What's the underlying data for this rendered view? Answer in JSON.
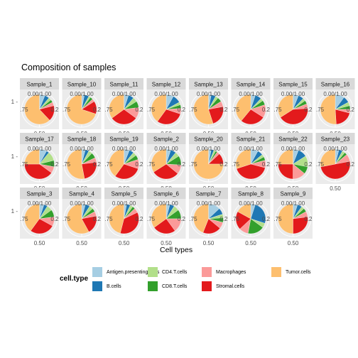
{
  "chart_data": {
    "type": "pie",
    "title": "Composition of samples",
    "xlabel": "Cell types",
    "legend_title": "cell.type",
    "legend_position": "bottom",
    "y_axis_tick": "1",
    "angle_ticks": [
      "0.00/1.00",
      ".75",
      "0.50",
      "0.2"
    ],
    "categories": [
      "Antigen.presenting.cells",
      "B.cells",
      "CD4.T.cells",
      "CD8.T.cells",
      "Macrophages",
      "Stromal.cells",
      "Tumor.cells"
    ],
    "colors": [
      "#a6cee3",
      "#1f78b4",
      "#b2df8a",
      "#33a02c",
      "#fb9a99",
      "#e31a1c",
      "#fdbf6f"
    ],
    "facets": [
      {
        "name": "Sample_1",
        "values": [
          0.06,
          0.05,
          0.03,
          0.03,
          0.04,
          0.17,
          0.62
        ]
      },
      {
        "name": "Sample_10",
        "values": [
          0.03,
          0.05,
          0.02,
          0.03,
          0.03,
          0.14,
          0.7
        ]
      },
      {
        "name": "Sample_11",
        "values": [
          0.05,
          0.06,
          0.05,
          0.07,
          0.12,
          0.3,
          0.35
        ]
      },
      {
        "name": "Sample_12",
        "values": [
          0.08,
          0.09,
          0.03,
          0.04,
          0.06,
          0.3,
          0.4
        ]
      },
      {
        "name": "Sample_13",
        "values": [
          0.03,
          0.05,
          0.03,
          0.05,
          0.06,
          0.23,
          0.55
        ]
      },
      {
        "name": "Sample_14",
        "values": [
          0.05,
          0.07,
          0.03,
          0.05,
          0.14,
          0.27,
          0.39
        ]
      },
      {
        "name": "Sample_15",
        "values": [
          0.06,
          0.06,
          0.03,
          0.04,
          0.05,
          0.42,
          0.34
        ]
      },
      {
        "name": "Sample_16",
        "values": [
          0.1,
          0.07,
          0.04,
          0.04,
          0.04,
          0.2,
          0.51
        ]
      },
      {
        "name": "Sample_17",
        "values": [
          0.08,
          0.03,
          0.1,
          0.07,
          0.07,
          0.4,
          0.25
        ]
      },
      {
        "name": "Sample_18",
        "values": [
          0.04,
          0.04,
          0.04,
          0.06,
          0.05,
          0.24,
          0.53
        ]
      },
      {
        "name": "Sample_19",
        "values": [
          0.06,
          0.05,
          0.04,
          0.05,
          0.1,
          0.3,
          0.4
        ]
      },
      {
        "name": "Sample_2",
        "values": [
          0.05,
          0.06,
          0.05,
          0.1,
          0.1,
          0.3,
          0.34
        ]
      },
      {
        "name": "Sample_20",
        "values": [
          0.03,
          0.03,
          0.02,
          0.02,
          0.03,
          0.12,
          0.75
        ]
      },
      {
        "name": "Sample_21",
        "values": [
          0.08,
          0.06,
          0.03,
          0.04,
          0.08,
          0.41,
          0.3
        ]
      },
      {
        "name": "Sample_22",
        "values": [
          0.06,
          0.1,
          0.12,
          0.08,
          0.14,
          0.25,
          0.25
        ]
      },
      {
        "name": "Sample_23",
        "values": [
          0.04,
          0.04,
          0.03,
          0.03,
          0.08,
          0.5,
          0.28
        ]
      },
      {
        "name": "Sample_3",
        "values": [
          0.05,
          0.04,
          0.06,
          0.08,
          0.1,
          0.27,
          0.4
        ]
      },
      {
        "name": "Sample_4",
        "values": [
          0.04,
          0.05,
          0.04,
          0.04,
          0.05,
          0.2,
          0.58
        ]
      },
      {
        "name": "Sample_5",
        "values": [
          0.03,
          0.04,
          0.03,
          0.03,
          0.05,
          0.36,
          0.46
        ]
      },
      {
        "name": "Sample_6",
        "values": [
          0.04,
          0.05,
          0.06,
          0.1,
          0.15,
          0.25,
          0.35
        ]
      },
      {
        "name": "Sample_7",
        "values": [
          0.13,
          0.07,
          0.04,
          0.05,
          0.07,
          0.2,
          0.44
        ]
      },
      {
        "name": "Sample_8",
        "values": [
          0.05,
          0.25,
          0.05,
          0.18,
          0.1,
          0.2,
          0.17
        ]
      },
      {
        "name": "Sample_9",
        "values": [
          0.05,
          0.05,
          0.03,
          0.04,
          0.06,
          0.27,
          0.5
        ]
      }
    ]
  }
}
